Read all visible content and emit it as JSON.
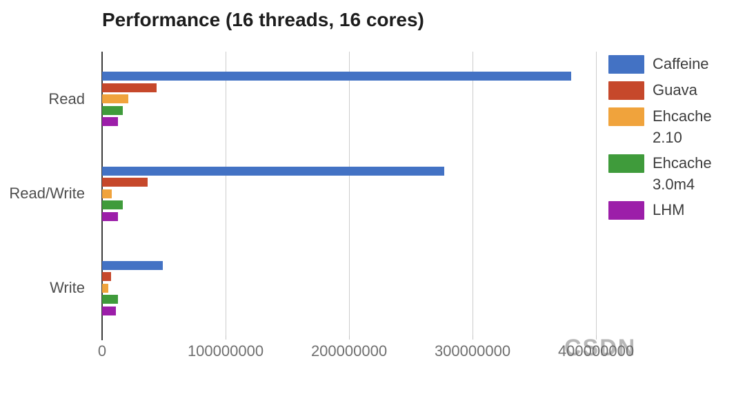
{
  "title": "Performance (16 threads, 16 cores)",
  "watermark": "CSDN",
  "colors": {
    "caffeine": "#4372C4",
    "guava": "#C6482B",
    "ehcache_210": "#F0A33C",
    "ehcache_30m4": "#3F9B3B",
    "lhm": "#9C1EA9",
    "gridline": "#CCCCCC",
    "axis": "#3B3B3B",
    "title_text": "#1D1D1D",
    "axis_label_text": "#6F6F6F",
    "category_text": "#4D4D4D",
    "legend_text": "#3C3C3C"
  },
  "chart_data": {
    "type": "bar",
    "orientation": "horizontal",
    "title": "Performance (16 threads, 16 cores)",
    "categories": [
      "Read",
      "Read/Write",
      "Write"
    ],
    "series": [
      {
        "name": "Caffeine",
        "color": "#4372C4",
        "values": [
          380000000,
          277000000,
          49000000
        ]
      },
      {
        "name": "Guava",
        "color": "#C6482B",
        "values": [
          44000000,
          37000000,
          7000000
        ]
      },
      {
        "name": "Ehcache 2.10",
        "color": "#F0A33C",
        "values": [
          21000000,
          8000000,
          5000000
        ]
      },
      {
        "name": "Ehcache 3.0m4",
        "color": "#3F9B3B",
        "values": [
          17000000,
          17000000,
          13000000
        ]
      },
      {
        "name": "LHM",
        "color": "#9C1EA9",
        "values": [
          13000000,
          13000000,
          11000000
        ]
      }
    ],
    "xlabel": "",
    "ylabel": "",
    "xlim": [
      0,
      400000000
    ],
    "x_ticks": [
      "0",
      "100000000",
      "200000000",
      "300000000",
      "400000000"
    ],
    "grid": true,
    "legend_position": "right",
    "legend_labels": [
      "Caffeine",
      "Guava",
      "Ehcache\n2.10",
      "Ehcache\n3.0m4",
      "LHM"
    ]
  }
}
